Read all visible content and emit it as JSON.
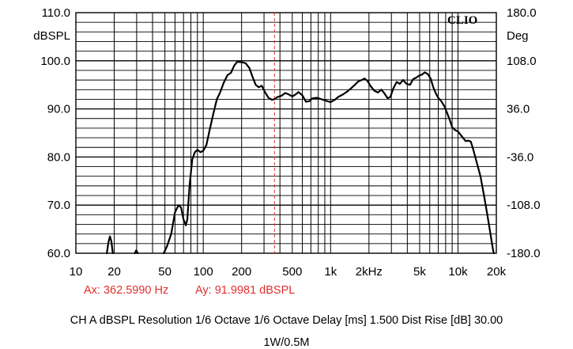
{
  "chart_data": {
    "type": "line",
    "x_scale": "log",
    "xlim": [
      10,
      20000
    ],
    "ylim_left": [
      60,
      110
    ],
    "ylim_right": [
      -180,
      180
    ],
    "grid": true,
    "x_ticks": [
      {
        "value": 10,
        "label": "10"
      },
      {
        "value": 20,
        "label": "20"
      },
      {
        "value": 50,
        "label": "50"
      },
      {
        "value": 100,
        "label": "100"
      },
      {
        "value": 200,
        "label": "200"
      },
      {
        "value": 500,
        "label": "500"
      },
      {
        "value": 1000,
        "label": "1k"
      },
      {
        "value": 2000,
        "label": "2kHz"
      },
      {
        "value": 5000,
        "label": "5k"
      },
      {
        "value": 10000,
        "label": "10k"
      },
      {
        "value": 20000,
        "label": "20k"
      }
    ],
    "y_left_ticks": [
      {
        "value": 110,
        "label": "110.0"
      },
      {
        "value": 100,
        "label": "100.0"
      },
      {
        "value": 90,
        "label": "90.0"
      },
      {
        "value": 80,
        "label": "80.0"
      },
      {
        "value": 70,
        "label": "70.0"
      },
      {
        "value": 60,
        "label": "60.0"
      }
    ],
    "y_right_ticks": [
      {
        "value": 180,
        "label": "180.0"
      },
      {
        "value": 108,
        "label": "108.0"
      },
      {
        "value": 36,
        "label": "36.0"
      },
      {
        "value": -36,
        "label": "-36.0"
      },
      {
        "value": -108,
        "label": "-108.0"
      },
      {
        "value": -180,
        "label": "-180.0"
      }
    ],
    "ylabel_left": "dBSPL",
    "ylabel_right": "Deg",
    "brand": "CLIO",
    "cursor": {
      "x": 362.599,
      "y": 91.9981,
      "x_text": "Ax: 362.5990 Hz",
      "y_text": "Ay: 91.9981 dBSPL"
    },
    "series": [
      {
        "color": "#000000",
        "points": [
          [
            17.5,
            60.0
          ],
          [
            18.0,
            62.2
          ],
          [
            18.5,
            63.5
          ],
          [
            19.0,
            62.5
          ],
          [
            19.5,
            60.0
          ],
          [
            29.0,
            60.0
          ],
          [
            29.8,
            60.6
          ],
          [
            30.6,
            60.0
          ],
          [
            49.0,
            60.0
          ],
          [
            52.0,
            61.5
          ],
          [
            56.0,
            64.0
          ],
          [
            60.0,
            68.5
          ],
          [
            64.0,
            70.0
          ],
          [
            67.0,
            69.5
          ],
          [
            70.0,
            67.0
          ],
          [
            73.0,
            65.8
          ],
          [
            75.0,
            67.0
          ],
          [
            78.0,
            74.0
          ],
          [
            82.0,
            79.5
          ],
          [
            86.0,
            81.0
          ],
          [
            90.0,
            81.5
          ],
          [
            95.0,
            81.0
          ],
          [
            100.0,
            81.3
          ],
          [
            106.0,
            82.5
          ],
          [
            112.0,
            85.5
          ],
          [
            120.0,
            89.0
          ],
          [
            128.0,
            92.0
          ],
          [
            136.0,
            93.5
          ],
          [
            145.0,
            95.5
          ],
          [
            155.0,
            97.0
          ],
          [
            165.0,
            97.5
          ],
          [
            175.0,
            99.0
          ],
          [
            185.0,
            99.8
          ],
          [
            200.0,
            99.7
          ],
          [
            215.0,
            99.5
          ],
          [
            230.0,
            98.5
          ],
          [
            245.0,
            96.5
          ],
          [
            258.0,
            95.0
          ],
          [
            272.0,
            94.5
          ],
          [
            288.0,
            94.8
          ],
          [
            305.0,
            93.5
          ],
          [
            325.0,
            92.3
          ],
          [
            345.0,
            91.9
          ],
          [
            362.6,
            92.0
          ],
          [
            385.0,
            92.5
          ],
          [
            410.0,
            92.7
          ],
          [
            440.0,
            93.3
          ],
          [
            470.0,
            93.0
          ],
          [
            500.0,
            92.6
          ],
          [
            530.0,
            93.0
          ],
          [
            560.0,
            93.5
          ],
          [
            600.0,
            92.8
          ],
          [
            640.0,
            91.5
          ],
          [
            680.0,
            91.6
          ],
          [
            720.0,
            92.2
          ],
          [
            780.0,
            92.3
          ],
          [
            850.0,
            92.0
          ],
          [
            920.0,
            91.7
          ],
          [
            1000.0,
            91.4
          ],
          [
            1080.0,
            91.9
          ],
          [
            1150.0,
            92.5
          ],
          [
            1250.0,
            93.0
          ],
          [
            1350.0,
            93.6
          ],
          [
            1450.0,
            94.3
          ],
          [
            1550.0,
            95.0
          ],
          [
            1650.0,
            95.7
          ],
          [
            1750.0,
            96.0
          ],
          [
            1850.0,
            96.3
          ],
          [
            1950.0,
            95.8
          ],
          [
            2050.0,
            94.8
          ],
          [
            2200.0,
            93.8
          ],
          [
            2350.0,
            93.4
          ],
          [
            2500.0,
            94.0
          ],
          [
            2650.0,
            93.2
          ],
          [
            2800.0,
            92.2
          ],
          [
            2950.0,
            92.5
          ],
          [
            3100.0,
            94.2
          ],
          [
            3300.0,
            95.6
          ],
          [
            3500.0,
            95.2
          ],
          [
            3700.0,
            96.0
          ],
          [
            3950.0,
            95.2
          ],
          [
            4200.0,
            95.0
          ],
          [
            4450.0,
            96.2
          ],
          [
            4700.0,
            96.5
          ],
          [
            4950.0,
            96.9
          ],
          [
            5200.0,
            97.1
          ],
          [
            5500.0,
            97.6
          ],
          [
            5800.0,
            97.2
          ],
          [
            6100.0,
            96.3
          ],
          [
            6400.0,
            94.5
          ],
          [
            6700.0,
            93.2
          ],
          [
            7000.0,
            92.3
          ],
          [
            7400.0,
            91.6
          ],
          [
            7800.0,
            90.6
          ],
          [
            8200.0,
            89.2
          ],
          [
            8600.0,
            87.8
          ],
          [
            9000.0,
            86.2
          ],
          [
            9500.0,
            85.6
          ],
          [
            10000.0,
            85.3
          ],
          [
            10500.0,
            84.6
          ],
          [
            11000.0,
            83.9
          ],
          [
            11500.0,
            83.3
          ],
          [
            12000.0,
            83.4
          ],
          [
            12600.0,
            83.2
          ],
          [
            13200.0,
            81.5
          ],
          [
            14000.0,
            79.0
          ],
          [
            15000.0,
            76.0
          ],
          [
            16000.0,
            72.0
          ],
          [
            17000.0,
            68.0
          ],
          [
            18000,
            64.0
          ],
          [
            18800.0,
            60.8
          ],
          [
            19100.0,
            60.0
          ]
        ]
      }
    ]
  },
  "footer": {
    "line1": "CH A   dBSPL   Resolution 1/6 Octave   1/6 Octave   Delay [ms] 1.500    Dist Rise [dB] 30.00",
    "line2": "1W/0.5M"
  }
}
